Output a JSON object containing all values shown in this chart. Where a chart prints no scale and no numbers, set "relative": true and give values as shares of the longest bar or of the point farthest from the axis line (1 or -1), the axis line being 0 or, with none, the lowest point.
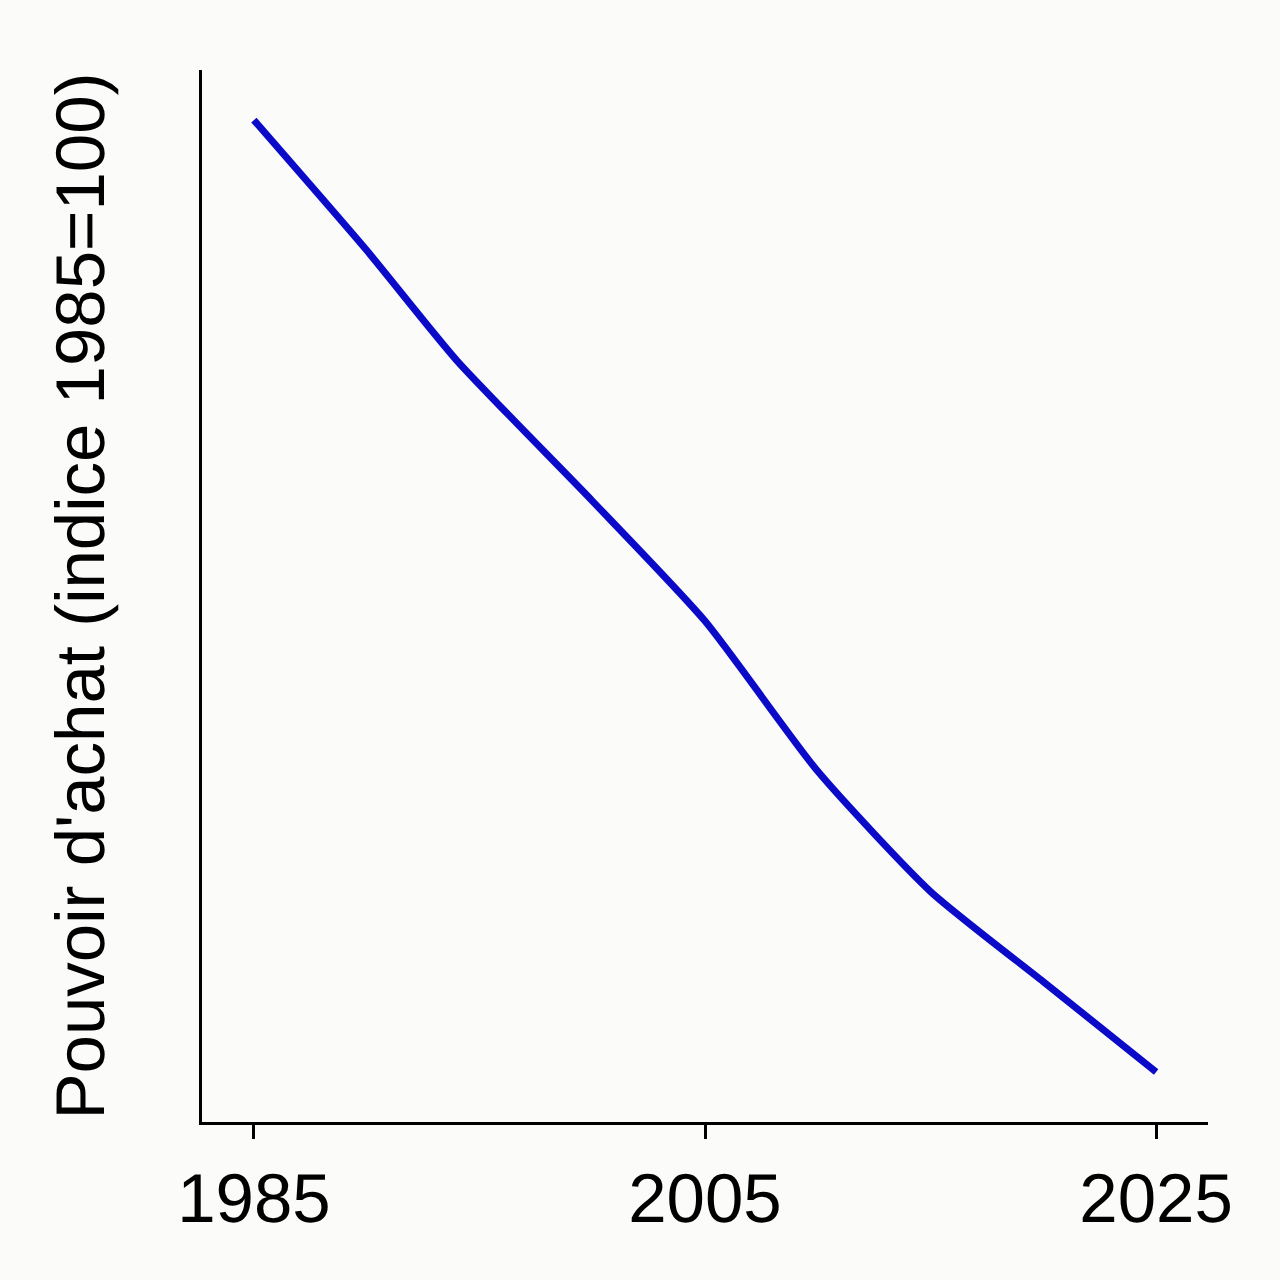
{
  "chart_data": {
    "type": "line",
    "ylabel": "Pouvoir d'achat (indice 1985=100)",
    "relative": true,
    "x": [
      1985,
      1990,
      1994,
      2000,
      2005,
      2010,
      2015,
      2020,
      2025
    ],
    "series": [
      {
        "color": "#0a0ac8",
        "values": [
          1.0,
          0.87,
          0.76,
          0.62,
          0.5,
          0.35,
          0.23,
          0.14,
          0.05
        ]
      }
    ],
    "xlim": [
      1982.7,
      2027.3
    ],
    "xticks": [
      1985,
      2005,
      2025
    ],
    "grid": false,
    "marker": "none",
    "line_style": "solid"
  }
}
